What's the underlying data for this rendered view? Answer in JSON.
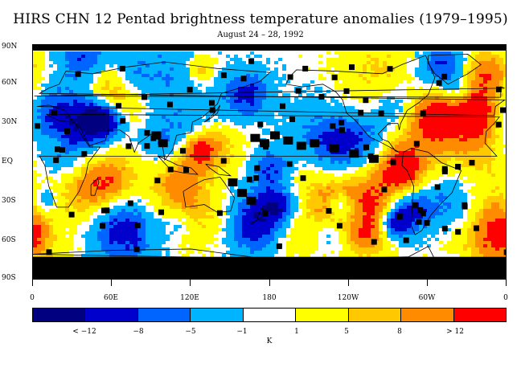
{
  "title": "HIRS CHN 12 Pentad brightness temperature anomalies (1979–1995)",
  "subtitle": "August 24 – 28, 1992",
  "map": {
    "projection": "equirectangular",
    "lon_range": [
      0,
      360
    ],
    "lat_range": [
      -90,
      90
    ],
    "y_axis_labels": [
      "90N",
      "60N",
      "30N",
      "EQ",
      "30S",
      "60S",
      "90S"
    ],
    "x_axis_labels": [
      "0",
      "60E",
      "120E",
      "180",
      "120W",
      "60W",
      "0"
    ],
    "missing_data_color": "#000000",
    "coastlines": true
  },
  "colorbar": {
    "colors": [
      "#000080",
      "#0000cd",
      "#0064ff",
      "#00b4ff",
      "#ffffff",
      "#ffff00",
      "#ffc800",
      "#ff8c00",
      "#ff0000"
    ],
    "labels": [
      "< −12",
      "−8",
      "−5",
      "−1",
      "1",
      "5",
      "8",
      "> 12"
    ],
    "unit": "K"
  }
}
